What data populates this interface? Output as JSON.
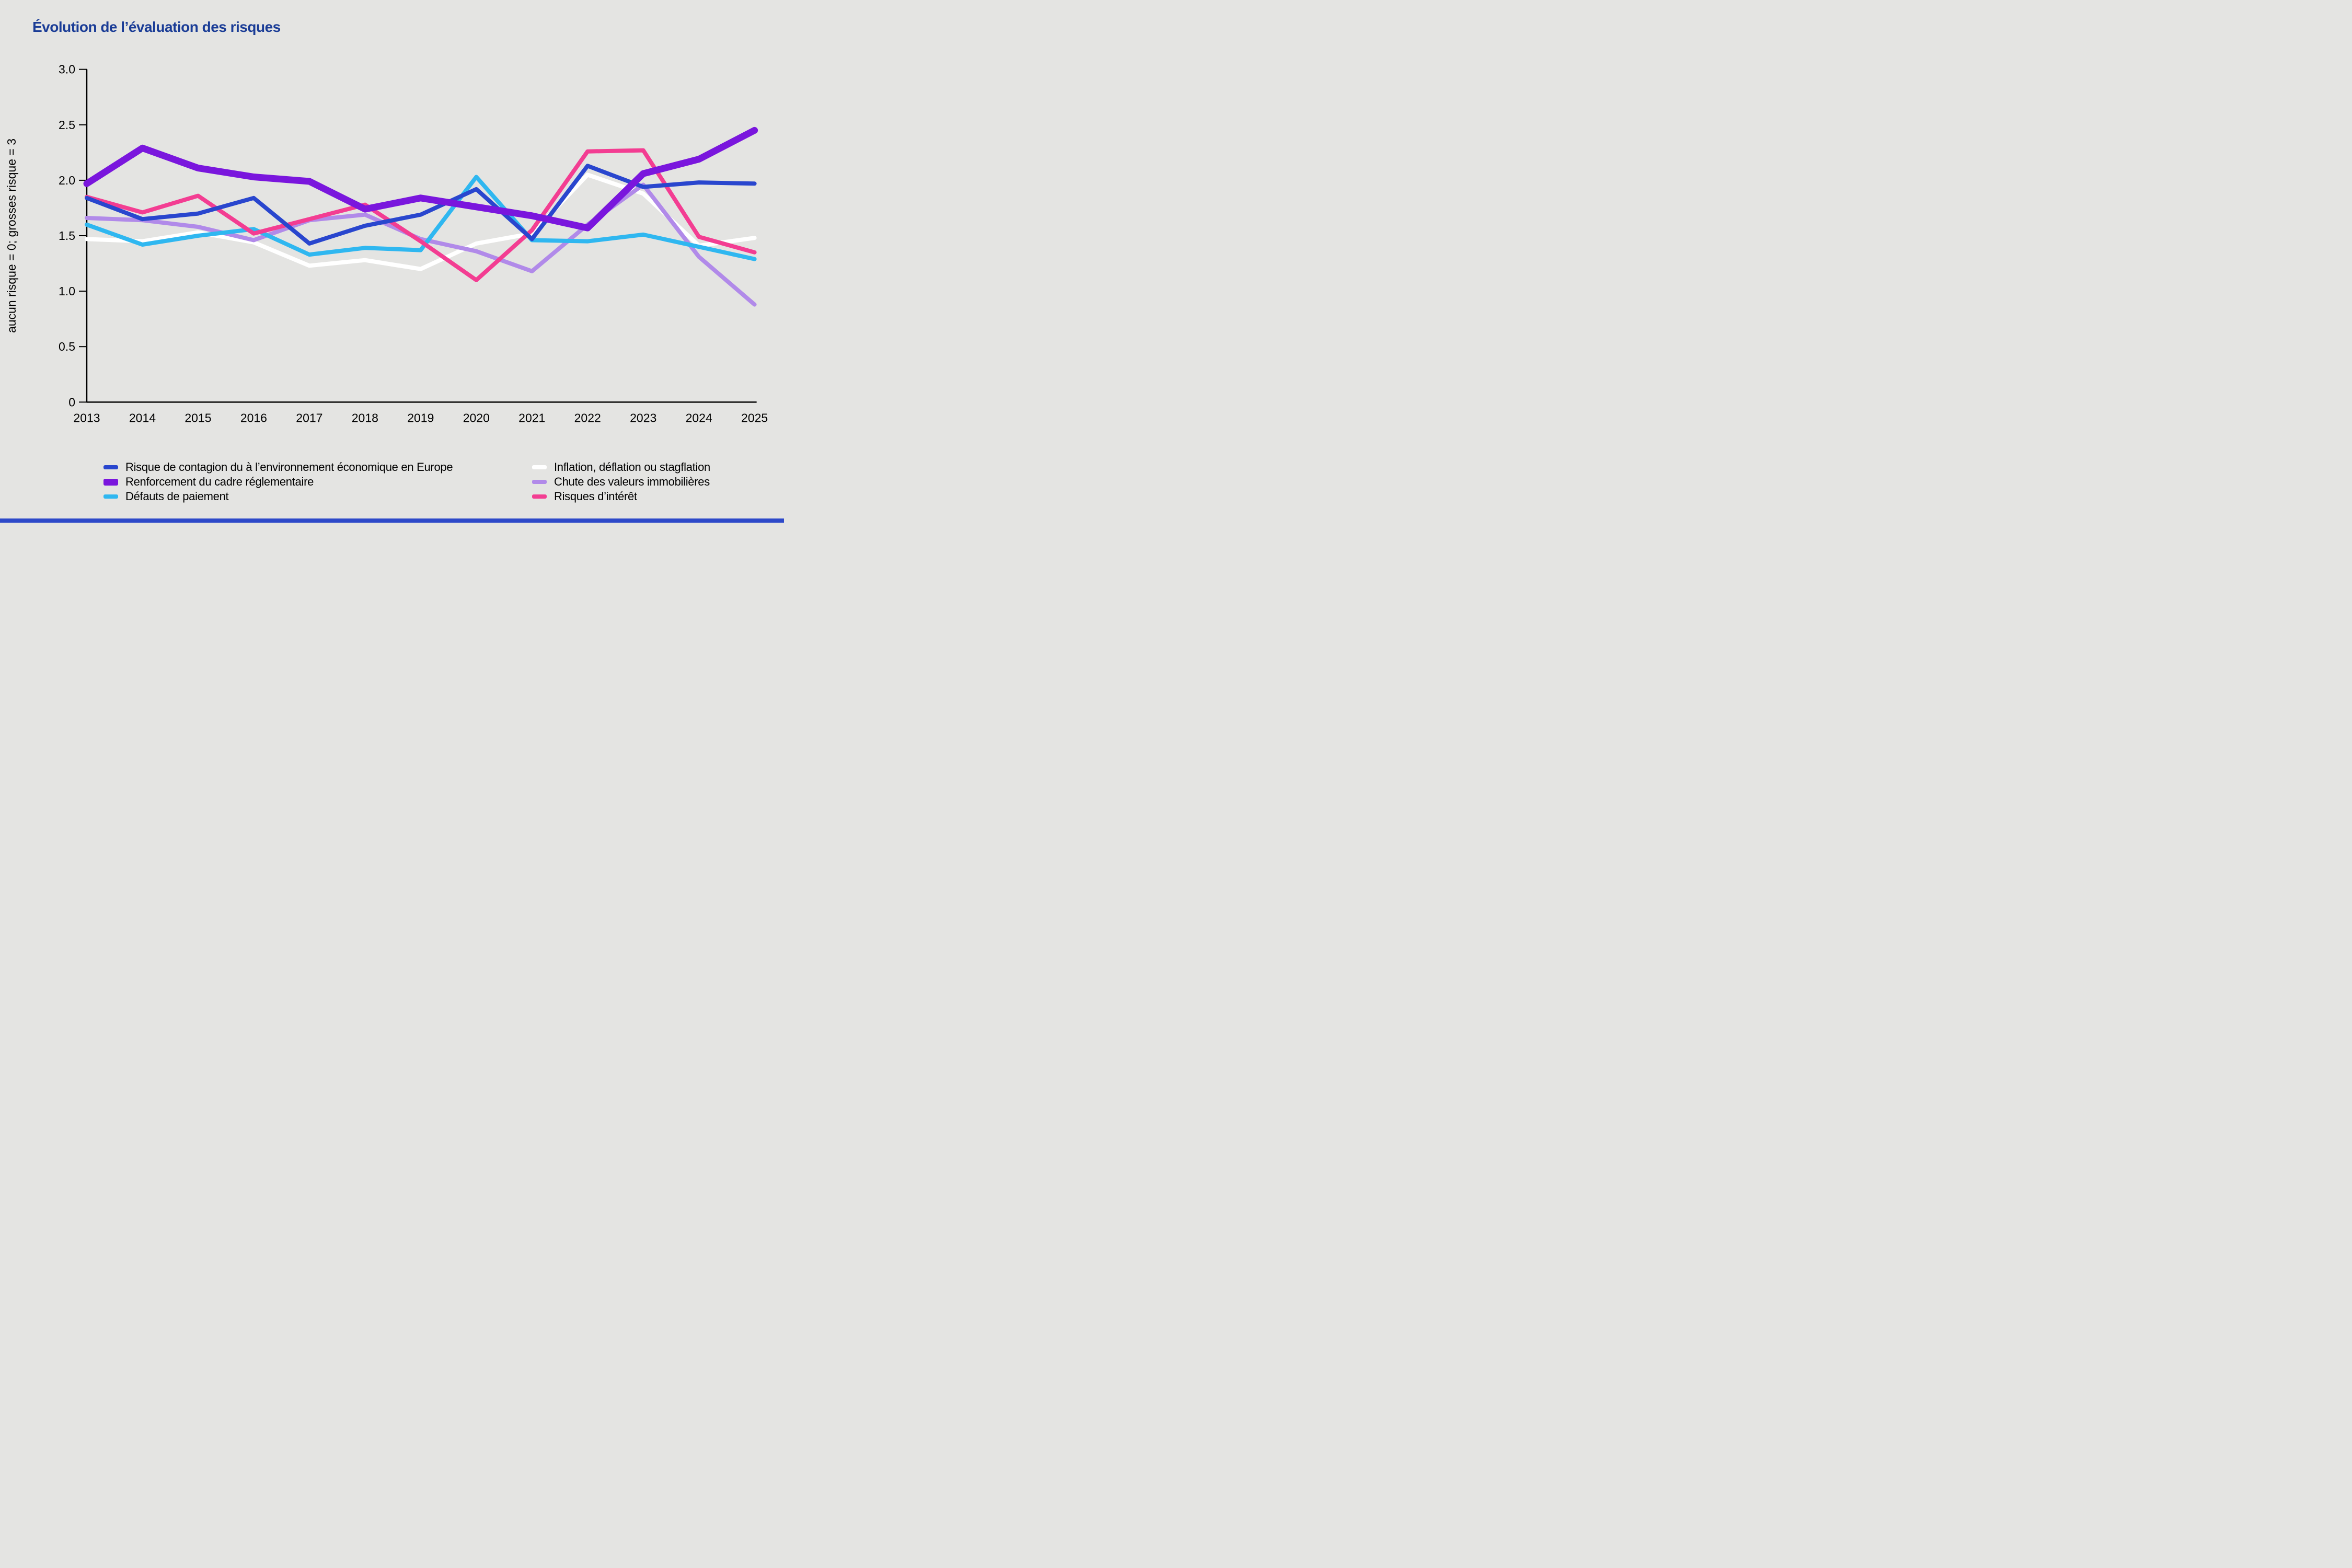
{
  "title": {
    "text": "Évolution de l’évaluation des risques",
    "color": "#1a3c96"
  },
  "background": "#e4e4e2",
  "bottom_bar_color": "#2d49c9",
  "axis_color": "#000000",
  "chart_data": {
    "type": "line",
    "x": [
      2013,
      2014,
      2015,
      2016,
      2017,
      2018,
      2019,
      2020,
      2021,
      2022,
      2023,
      2024,
      2025
    ],
    "x_tick_labels": [
      "2013",
      "2014",
      "2015",
      "2016",
      "2017",
      "2018",
      "2019",
      "2020",
      "2021",
      "2022",
      "2023",
      "2024",
      "2025"
    ],
    "y_tick_values": [
      0,
      0.5,
      1.0,
      1.5,
      2.0,
      2.5,
      3.0
    ],
    "y_tick_labels": [
      "0",
      "0.5",
      "1.0",
      "1.5",
      "2.0",
      "2.5",
      "3.0"
    ],
    "ylabel": "aucun risque = 0; grosses risque = 3",
    "ylim": [
      0,
      3
    ],
    "grid": false,
    "legend_position": "bottom, two columns",
    "series": [
      {
        "name": "Risque de contagion du à l’environnement économique en Europe",
        "color": "#2946ce",
        "thickness": "regular",
        "values": [
          1.84,
          1.65,
          1.7,
          1.84,
          1.43,
          1.59,
          1.69,
          1.92,
          1.47,
          2.13,
          1.94,
          1.98,
          1.97
        ]
      },
      {
        "name": "Renforcement du cadre réglementaire",
        "color": "#7a16dd",
        "thickness": "thick",
        "values": [
          1.97,
          2.29,
          2.11,
          2.03,
          1.99,
          1.74,
          1.84,
          1.76,
          1.68,
          1.57,
          2.06,
          2.19,
          2.45
        ]
      },
      {
        "name": "Défauts de paiement",
        "color": "#2fb7f0",
        "thickness": "regular",
        "values": [
          1.6,
          1.42,
          1.5,
          1.56,
          1.33,
          1.39,
          1.37,
          2.03,
          1.46,
          1.45,
          1.51,
          1.4,
          1.29
        ]
      },
      {
        "name": "Inflation, déflation ou stagflation",
        "color": "#ffffff",
        "thickness": "regular",
        "values": [
          1.47,
          1.45,
          1.53,
          1.44,
          1.23,
          1.28,
          1.2,
          1.43,
          1.52,
          2.05,
          1.88,
          1.41,
          1.48
        ]
      },
      {
        "name": "Chute des valeurs immobilières",
        "color": "#b18ae9",
        "thickness": "regular",
        "values": [
          1.66,
          1.64,
          1.58,
          1.46,
          1.64,
          1.69,
          1.47,
          1.36,
          1.18,
          1.6,
          1.96,
          1.31,
          0.88
        ]
      },
      {
        "name": "Risques d’intérêt",
        "color": "#f33d92",
        "thickness": "regular",
        "values": [
          1.85,
          1.71,
          1.86,
          1.52,
          1.65,
          1.78,
          1.45,
          1.1,
          1.55,
          2.26,
          2.27,
          1.49,
          1.35
        ]
      }
    ],
    "legend_columns": [
      [
        0,
        1,
        2
      ],
      [
        3,
        4,
        5
      ]
    ],
    "draw_order": [
      3,
      4,
      2,
      5,
      0,
      1
    ]
  }
}
